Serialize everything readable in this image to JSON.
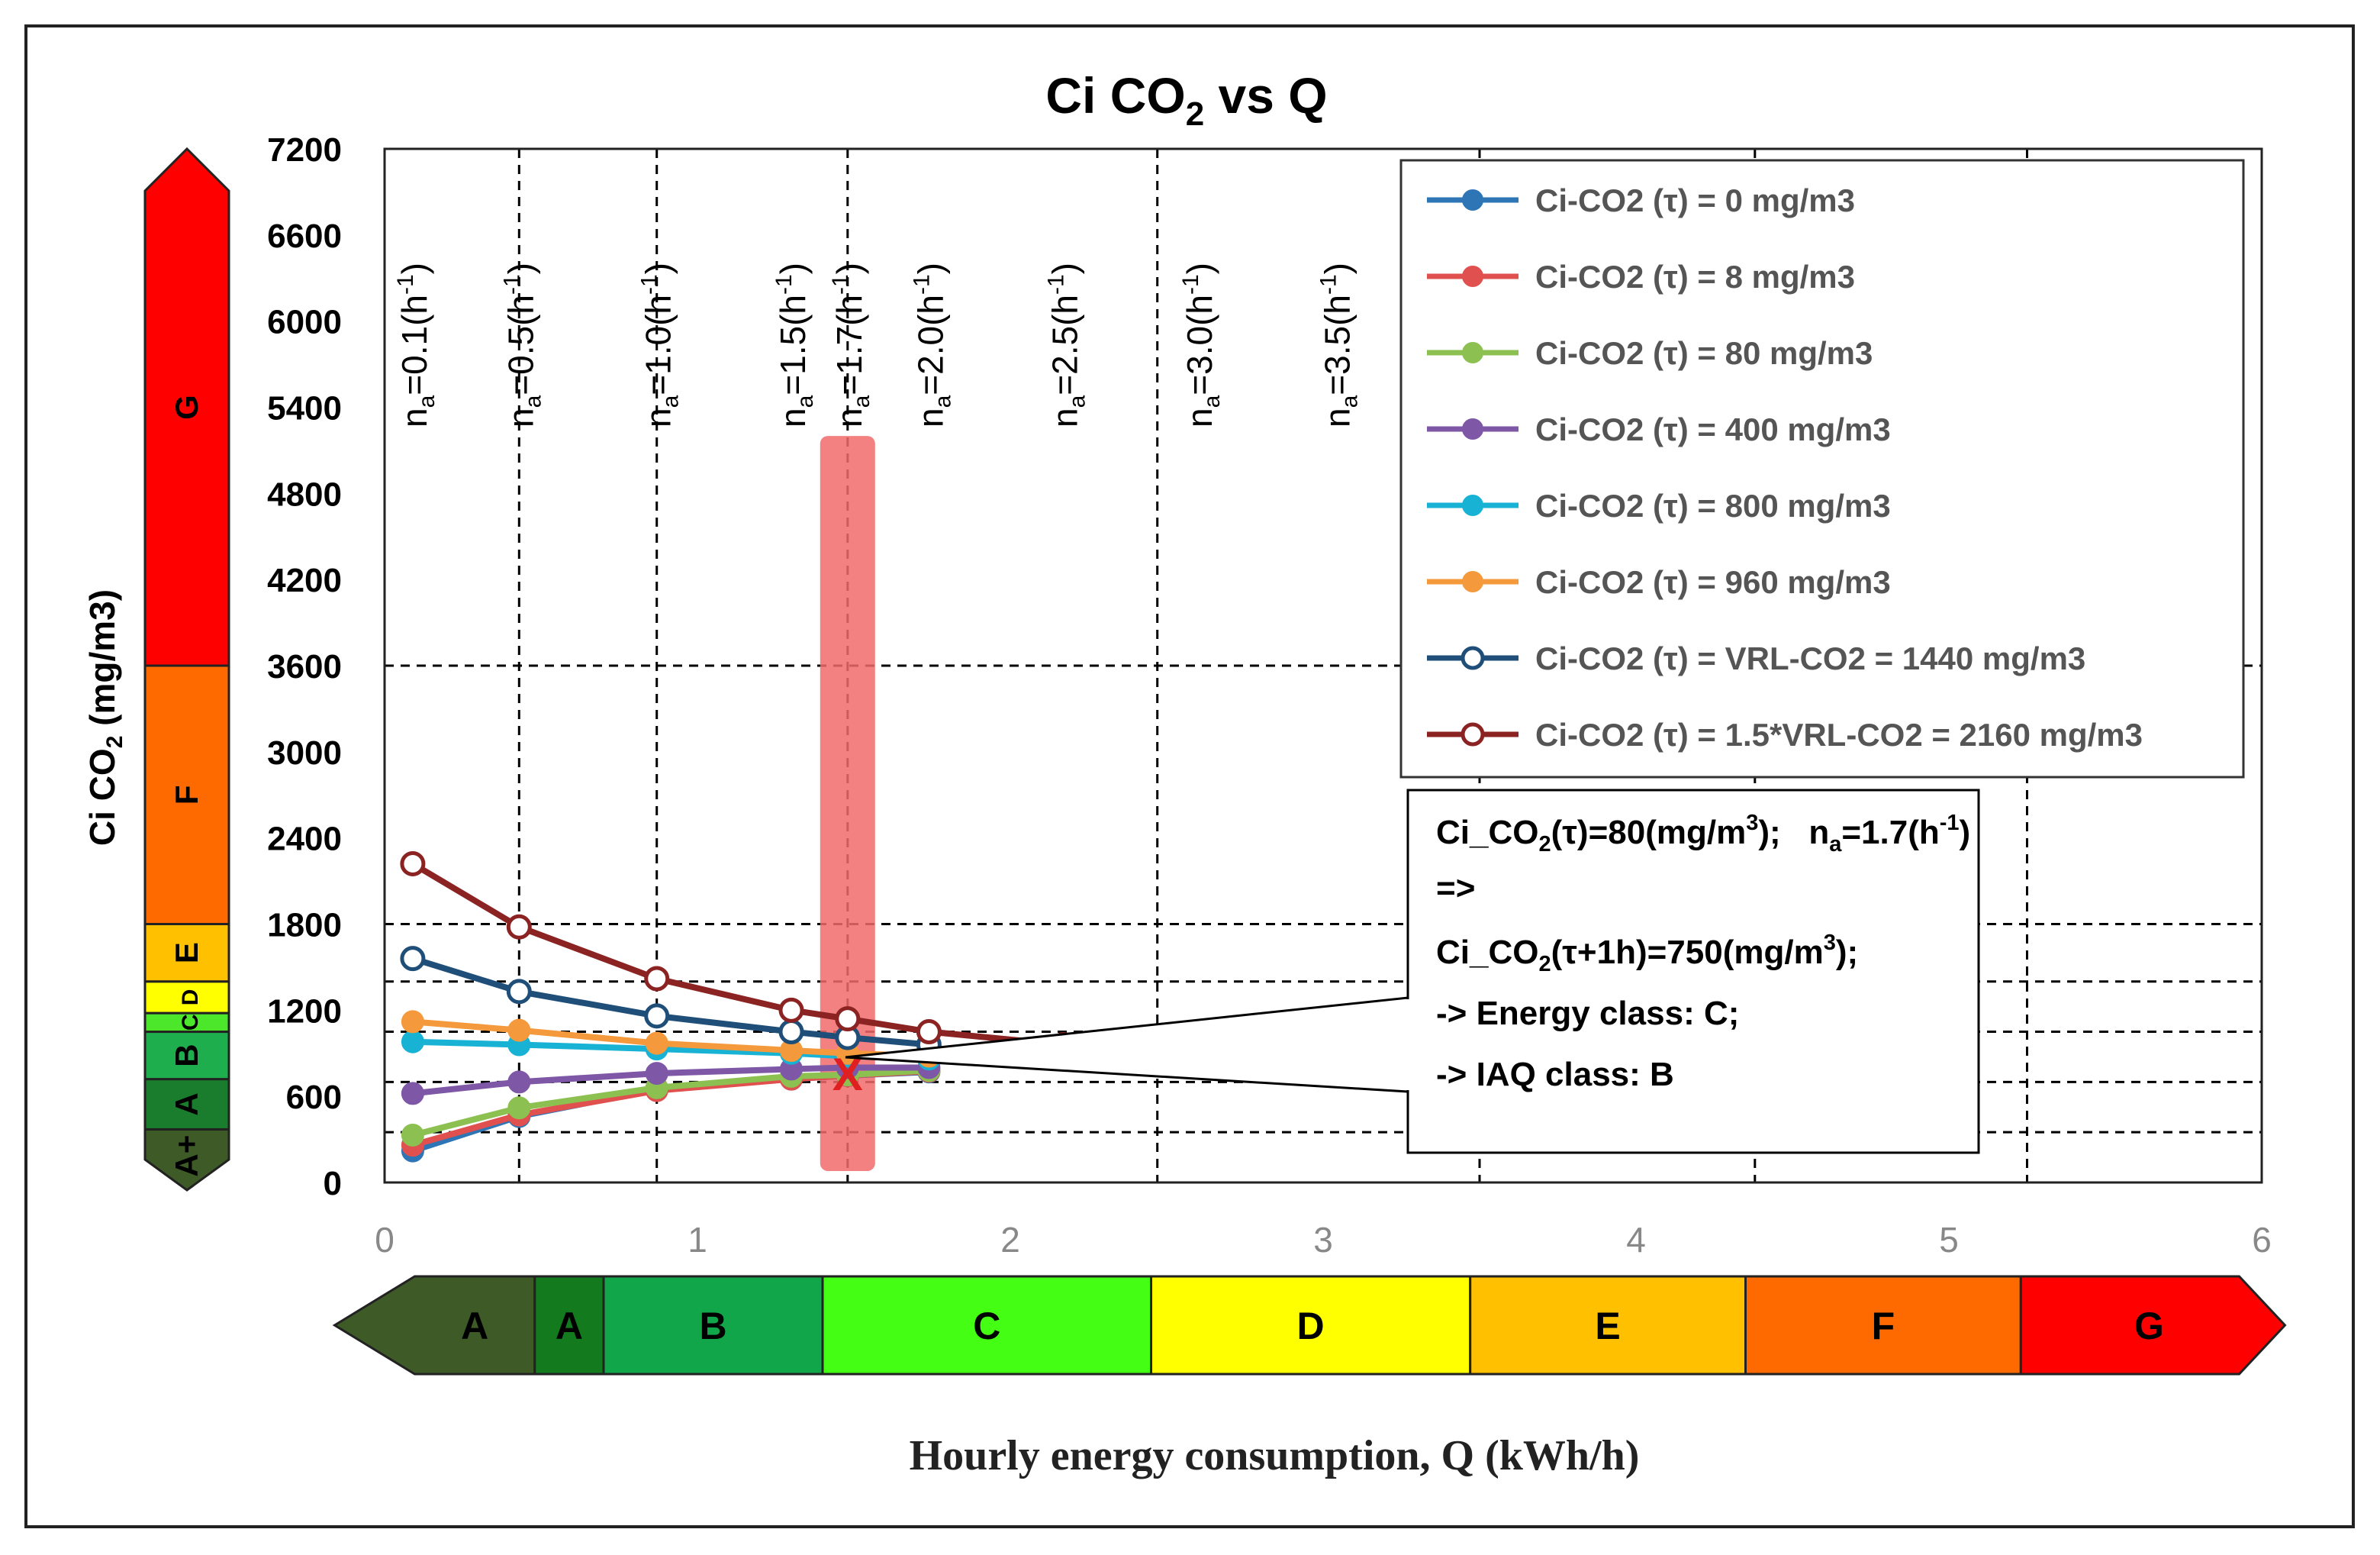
{
  "chart_data": {
    "type": "line",
    "title": "Ci CO",
    "title_sub": "2",
    "title_tail": " vs Q",
    "ylabel": "Ci CO",
    "ylabel_sub": "2",
    "ylabel_tail": " (mg/m3)",
    "xlabel": "Hourly energy consumption, Q (kWh/h)",
    "xlim": [
      0,
      6
    ],
    "ylim": [
      0,
      7200
    ],
    "xticks": [
      "0",
      "1",
      "2",
      "3",
      "4",
      "5",
      "6"
    ],
    "yticks": [
      "0",
      "600",
      "1200",
      "1800",
      "2400",
      "3000",
      "3600",
      "4200",
      "4800",
      "5400",
      "6000",
      "6600",
      "7200"
    ],
    "grid_h": [
      350,
      700,
      1050,
      1400,
      1800,
      3600
    ],
    "grid_v": [
      {
        "q": 0.09,
        "prefix": "n",
        "sub": "a",
        "label": "=0.1(h",
        "sup": "-1",
        "close": ")",
        "line": false
      },
      {
        "q": 0.43,
        "prefix": "n",
        "sub": "a",
        "label": "=0.5(h",
        "sup": "-1",
        "close": ")",
        "line": true
      },
      {
        "q": 0.87,
        "prefix": "n",
        "sub": "a",
        "label": "=1.0(h",
        "sup": "-1",
        "close": ")",
        "line": true
      },
      {
        "q": 1.3,
        "prefix": "n",
        "sub": "a",
        "label": "=1.5(h",
        "sup": "-1",
        "close": ")",
        "line": false
      },
      {
        "q": 1.48,
        "prefix": "n",
        "sub": "a",
        "label": "=1.7(h",
        "sup": "-1",
        "close": ")",
        "line": true
      },
      {
        "q": 1.74,
        "prefix": "n",
        "sub": "a",
        "label": "=2.0(h",
        "sup": "-1",
        "close": ")",
        "line": false
      },
      {
        "q": 2.17,
        "prefix": "n",
        "sub": "a",
        "label": "=2.5(h",
        "sup": "-1",
        "close": ")",
        "line": false
      },
      {
        "q": 2.6,
        "prefix": "n",
        "sub": "a",
        "label": "=3.0(h",
        "sup": "-1",
        "close": ")",
        "line": false
      },
      {
        "q": 3.04,
        "prefix": "n",
        "sub": "a",
        "label": "=3.5(h",
        "sup": "-1",
        "close": ")",
        "line": false
      }
    ],
    "extra_v_lines": [
      2.47,
      3.5,
      4.38,
      5.25
    ],
    "series": [
      {
        "name": "Ci-CO2 (τ) =  0 mg/m3",
        "color": "#2E75B6",
        "hollow": false,
        "x": [
          0.09,
          0.43,
          0.87,
          1.3,
          1.48,
          1.74
        ],
        "y": [
          220,
          460,
          650,
          720,
          745,
          770
        ]
      },
      {
        "name": "Ci-CO2 (τ) =  8 mg/m3",
        "color": "#E0504F",
        "hollow": false,
        "x": [
          0.09,
          0.43,
          0.87,
          1.3,
          1.48,
          1.74
        ],
        "y": [
          260,
          470,
          640,
          720,
          745,
          775
        ]
      },
      {
        "name": "Ci-CO2 (τ) =  80 mg/m3",
        "color": "#8CC152",
        "hollow": false,
        "x": [
          0.09,
          0.43,
          0.87,
          1.3,
          1.48,
          1.74
        ],
        "y": [
          330,
          520,
          660,
          740,
          750,
          780
        ]
      },
      {
        "name": "Ci-CO2 (τ) =  400 mg/m3",
        "color": "#7E57A6",
        "hollow": false,
        "x": [
          0.09,
          0.43,
          0.87,
          1.3,
          1.48,
          1.74
        ],
        "y": [
          620,
          700,
          760,
          790,
          800,
          800
        ]
      },
      {
        "name": "Ci-CO2 (τ) =  800 mg/m3",
        "color": "#17B2D4",
        "hollow": false,
        "x": [
          0.09,
          0.43,
          0.87,
          1.3,
          1.48,
          1.74
        ],
        "y": [
          980,
          960,
          930,
          900,
          880,
          860
        ]
      },
      {
        "name": "Ci-CO2 (τ) =  960 mg/m3",
        "color": "#F59A3C",
        "hollow": false,
        "x": [
          0.09,
          0.43,
          0.87,
          1.3,
          1.48,
          1.74
        ],
        "y": [
          1120,
          1060,
          970,
          920,
          900,
          880
        ]
      },
      {
        "name": "Ci-CO2 (τ) =  VRL-CO2 = 1440 mg/m3",
        "color": "#1F4E79",
        "hollow": true,
        "x": [
          0.09,
          0.43,
          0.87,
          1.3,
          1.48,
          1.74
        ],
        "y": [
          1560,
          1330,
          1160,
          1050,
          1010,
          960
        ]
      },
      {
        "name": "Ci-CO2 (τ) = 1.5*VRL-CO2 =  2160 mg/m3",
        "color": "#8B2323",
        "hollow": true,
        "x": [
          0.09,
          0.43,
          0.87,
          1.3,
          1.48,
          1.74,
          2.17
        ],
        "y": [
          2220,
          1780,
          1420,
          1200,
          1140,
          1050,
          960
        ]
      }
    ],
    "highlight": {
      "x_center": 1.48,
      "y_min": 80,
      "y_max": 5200,
      "color": "#F26B6B"
    },
    "marker_point": {
      "x": 1.48,
      "y": 760,
      "symbol": "X"
    },
    "annotation": {
      "line1_a": "Ci_CO",
      "line1_sub": "2",
      "line1_b": "(τ)=80(mg/m",
      "line1_sup": "3",
      "line1_c": ");   n",
      "line1_sub2": "a",
      "line1_d": "=1.7(h",
      "line1_sup2": "-1",
      "line1_e": ")",
      "line2": "=>",
      "line3_a": "Ci_CO",
      "line3_sub": "2",
      "line3_b": "(τ+1h)=750(mg/m",
      "line3_sup": "3",
      "line3_c": ");",
      "line4": "-> Energy class: C;",
      "line5": "-> IAQ class: B"
    },
    "iaq_scale": [
      {
        "label": "A+",
        "from": 0,
        "to": 370,
        "color": "#3E5A26"
      },
      {
        "label": "A",
        "from": 370,
        "to": 720,
        "color": "#1A7D2E"
      },
      {
        "label": "B",
        "from": 720,
        "to": 1050,
        "color": "#1FAE4E"
      },
      {
        "label": "C",
        "from": 1050,
        "to": 1180,
        "color": "#4CE62A"
      },
      {
        "label": "D",
        "from": 1180,
        "to": 1400,
        "color": "#FFFF00"
      },
      {
        "label": "E",
        "from": 1400,
        "to": 1800,
        "color": "#FFC000"
      },
      {
        "label": "F",
        "from": 1800,
        "to": 3600,
        "color": "#FF6A00"
      },
      {
        "label": "G",
        "from": 3600,
        "to": 7200,
        "color": "#FF0000"
      }
    ],
    "energy_scale": [
      {
        "label": "A",
        "from": -0.05,
        "to": 0.48,
        "color": "#3E5A26"
      },
      {
        "label": "A",
        "from": 0.48,
        "to": 0.7,
        "color": "#137A1E"
      },
      {
        "label": "B",
        "from": 0.7,
        "to": 1.4,
        "color": "#12A64A"
      },
      {
        "label": "C",
        "from": 1.4,
        "to": 2.45,
        "color": "#44FF14"
      },
      {
        "label": "D",
        "from": 2.45,
        "to": 3.47,
        "color": "#FFFF00"
      },
      {
        "label": "E",
        "from": 3.47,
        "to": 4.35,
        "color": "#FFC000"
      },
      {
        "label": "F",
        "from": 4.35,
        "to": 5.23,
        "color": "#FF6A00"
      },
      {
        "label": "G",
        "from": 5.23,
        "to": 6.05,
        "color": "#FF0000"
      }
    ]
  }
}
